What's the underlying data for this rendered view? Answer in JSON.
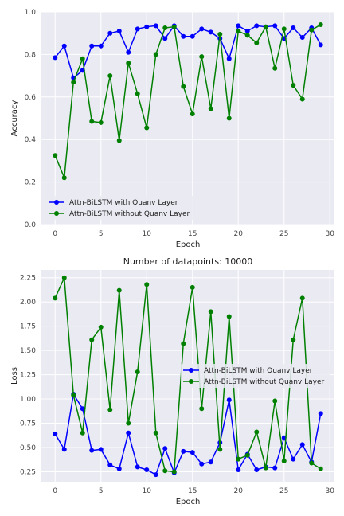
{
  "chart_data": [
    {
      "type": "line",
      "title": "",
      "xlabel": "Epoch",
      "ylabel": "Accuracy",
      "xlim": [
        -1.5,
        30.5
      ],
      "ylim": [
        0.0,
        1.0
      ],
      "xticks": [
        "0",
        "5",
        "10",
        "15",
        "20",
        "25",
        "30"
      ],
      "yticks": [
        "0.0",
        "0.2",
        "0.4",
        "0.6",
        "0.8",
        "1.0"
      ],
      "grid": true,
      "legend_position": "lower-left",
      "x": [
        0,
        1,
        2,
        3,
        4,
        5,
        6,
        7,
        8,
        9,
        10,
        11,
        12,
        13,
        14,
        15,
        16,
        17,
        18,
        19,
        20,
        21,
        22,
        23,
        24,
        25,
        26,
        27,
        28,
        29
      ],
      "series": [
        {
          "name": "Attn-BiLSTM with Quanv Layer",
          "color": "#0000ff",
          "values": [
            0.785,
            0.84,
            0.69,
            0.725,
            0.84,
            0.84,
            0.9,
            0.91,
            0.81,
            0.92,
            0.93,
            0.935,
            0.875,
            0.935,
            0.885,
            0.885,
            0.92,
            0.905,
            0.875,
            0.78,
            0.935,
            0.91,
            0.935,
            0.93,
            0.935,
            0.875,
            0.925,
            0.88,
            0.925,
            0.845
          ]
        },
        {
          "name": "Attn-BiLSTM without Quanv Layer",
          "color": "#008000",
          "values": [
            0.325,
            0.22,
            0.67,
            0.78,
            0.485,
            0.48,
            0.7,
            0.395,
            0.76,
            0.615,
            0.455,
            0.8,
            0.925,
            0.93,
            0.65,
            0.52,
            0.79,
            0.545,
            0.895,
            0.5,
            0.91,
            0.89,
            0.855,
            0.93,
            0.735,
            0.92,
            0.655,
            0.59,
            0.915,
            0.94
          ]
        }
      ]
    },
    {
      "type": "line",
      "title": "Number of datapoints: 10000",
      "xlabel": "Epoch",
      "ylabel": "Loss",
      "xlim": [
        -1.5,
        30.5
      ],
      "ylim": [
        0.147,
        2.33
      ],
      "xticks": [
        "0",
        "5",
        "10",
        "15",
        "20",
        "25",
        "30"
      ],
      "yticks": [
        "0.25",
        "0.50",
        "0.75",
        "1.00",
        "1.25",
        "1.50",
        "1.75",
        "2.00",
        "2.25"
      ],
      "grid": true,
      "legend_position": "center-right",
      "x": [
        0,
        1,
        2,
        3,
        4,
        5,
        6,
        7,
        8,
        9,
        10,
        11,
        12,
        13,
        14,
        15,
        16,
        17,
        18,
        19,
        20,
        21,
        22,
        23,
        24,
        25,
        26,
        27,
        28,
        29
      ],
      "series": [
        {
          "name": "Attn-BiLSTM with Quanv Layer",
          "color": "#0000ff",
          "values": [
            0.64,
            0.48,
            1.05,
            0.9,
            0.47,
            0.48,
            0.32,
            0.28,
            0.65,
            0.3,
            0.27,
            0.22,
            0.49,
            0.24,
            0.46,
            0.45,
            0.33,
            0.35,
            0.55,
            0.99,
            0.27,
            0.43,
            0.27,
            0.3,
            0.29,
            0.6,
            0.38,
            0.53,
            0.35,
            0.85
          ]
        },
        {
          "name": "Attn-BiLSTM without Quanv Layer",
          "color": "#008000",
          "values": [
            2.04,
            2.25,
            1.04,
            0.65,
            1.61,
            1.74,
            0.89,
            2.12,
            0.75,
            1.28,
            2.18,
            0.65,
            0.26,
            0.25,
            1.57,
            2.15,
            0.9,
            1.9,
            0.48,
            1.85,
            0.38,
            0.42,
            0.66,
            0.29,
            0.98,
            0.36,
            1.61,
            2.04,
            0.34,
            0.28
          ]
        }
      ]
    }
  ]
}
